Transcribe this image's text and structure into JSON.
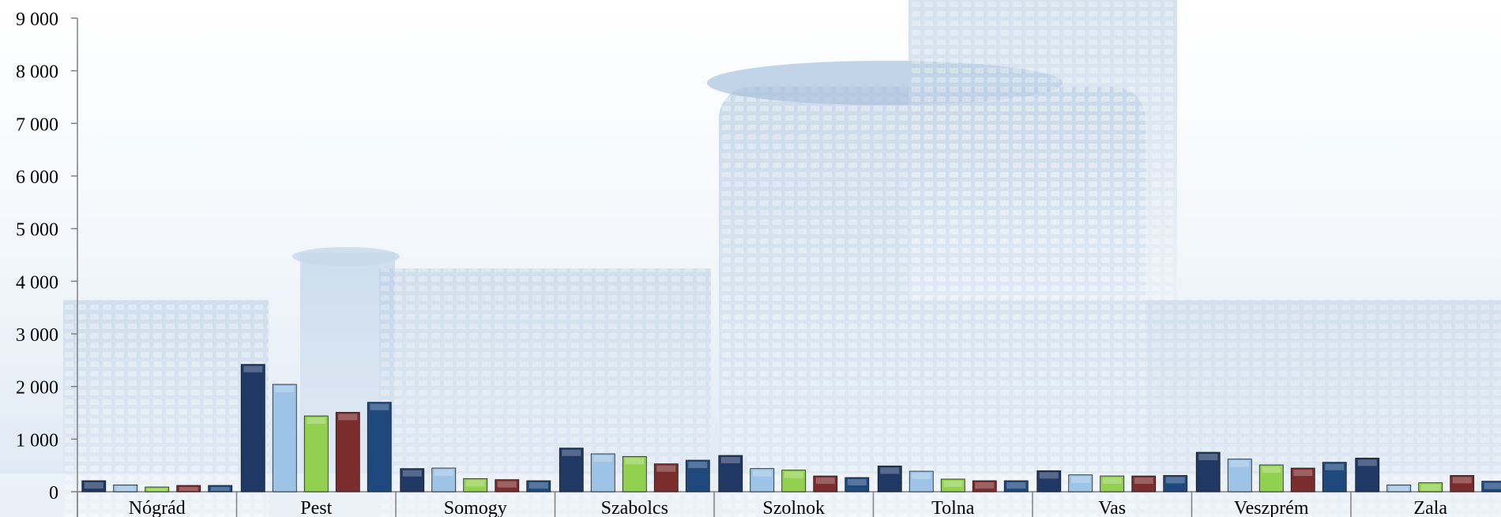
{
  "chart_data": {
    "type": "bar",
    "categories": [
      "Nógrád",
      "Pest",
      "Somogy",
      "Szabolcs",
      "Szolnok",
      "Tolna",
      "Vas",
      "Veszprém",
      "Zala"
    ],
    "series": [
      {
        "values": [
          210,
          2420,
          440,
          830,
          690,
          490,
          400,
          750,
          640
        ]
      },
      {
        "values": [
          130,
          2040,
          450,
          720,
          440,
          390,
          320,
          620,
          130
        ]
      },
      {
        "values": [
          90,
          1440,
          250,
          670,
          410,
          240,
          300,
          510,
          170
        ]
      },
      {
        "values": [
          120,
          1510,
          230,
          530,
          300,
          210,
          300,
          450,
          310
        ]
      },
      {
        "values": [
          120,
          1700,
          210,
          600,
          270,
          210,
          310,
          560,
          200
        ]
      }
    ],
    "ylim": [
      0,
      9000
    ],
    "yticks": [
      "0",
      "1 000",
      "2 000",
      "3 000",
      "4 000",
      "5 000",
      "6 000",
      "7 000",
      "8 000",
      "9 000"
    ],
    "grid": false,
    "colors": [
      "#1f3864",
      "#9dc3e6",
      "#92d050",
      "#7b2c2c",
      "#1f497d"
    ]
  }
}
